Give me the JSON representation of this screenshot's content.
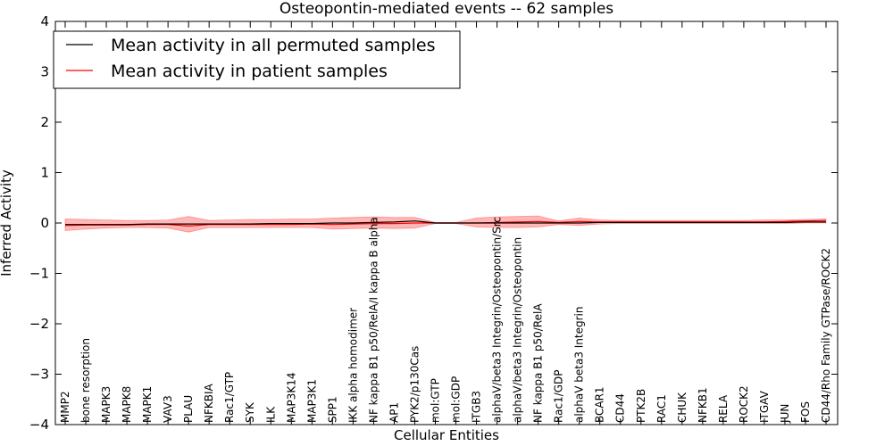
{
  "chart_data": {
    "type": "line",
    "title": "Osteopontin-mediated events -- 62 samples",
    "xlabel": "Cellular Entities",
    "ylabel": "Inferred Activity",
    "ylim": [
      -4,
      4
    ],
    "yticks": [
      -4,
      -3,
      -2,
      -1,
      0,
      1,
      2,
      3,
      4
    ],
    "ytick_labels": [
      "−4",
      "−3",
      "−2",
      "−1",
      "0",
      "1",
      "2",
      "3",
      "4"
    ],
    "legend_position": "upper-left",
    "categories": [
      "MMP2",
      "bone resorption",
      "MAPK3",
      "MAPK8",
      "MAPK1",
      "VAV3",
      "PLAU",
      "NFKBIA",
      "Rac1/GTP",
      "SYK",
      "ILK",
      "MAP3K14",
      "MAP3K1",
      "SPP1",
      "IKK alpha homodimer",
      "NF kappa B1 p50/RelA/I kappa B alpha",
      "AP1",
      "PYK2/p130Cas",
      "mol:GTP",
      "mol:GDP",
      "ITGB3",
      "alphaV/beta3 Integrin/Osteopontin/Src",
      "alphaV/beta3 Integrin/Osteopontin",
      "NF kappa B1 p50/RelA",
      "Rac1/GDP",
      "alphaV beta3 Integrin",
      "BCAR1",
      "CD44",
      "PTK2B",
      "RAC1",
      "CHUK",
      "NFKB1",
      "RELA",
      "ROCK2",
      "ITGAV",
      "JUN",
      "FOS",
      "CD44/Rho Family GTPase/ROCK2"
    ],
    "series": [
      {
        "name": "Mean activity in all permuted samples",
        "color": "#000000",
        "values": [
          -0.03,
          -0.03,
          -0.03,
          -0.03,
          -0.02,
          -0.02,
          -0.02,
          -0.02,
          -0.02,
          -0.02,
          -0.01,
          -0.01,
          -0.01,
          0.0,
          0.0,
          0.01,
          0.02,
          0.04,
          0.0,
          0.0,
          0.0,
          0.0,
          0.0,
          0.0,
          0.0,
          0.0,
          0.01,
          0.01,
          0.01,
          0.01,
          0.01,
          0.01,
          0.01,
          0.01,
          0.01,
          0.01,
          0.02,
          0.02
        ]
      },
      {
        "name": "Mean activity in patient samples",
        "color": "#ff0000",
        "values": [
          -0.05,
          -0.04,
          -0.04,
          -0.04,
          -0.03,
          -0.03,
          -0.06,
          -0.03,
          -0.03,
          -0.03,
          -0.03,
          -0.03,
          -0.02,
          -0.03,
          -0.02,
          -0.01,
          -0.01,
          0.0,
          0.0,
          0.0,
          0.0,
          0.01,
          0.02,
          0.03,
          0.01,
          0.03,
          0.02,
          0.02,
          0.02,
          0.02,
          0.02,
          0.02,
          0.02,
          0.02,
          0.02,
          0.03,
          0.04,
          0.05
        ]
      }
    ],
    "band": {
      "color": "#ff0000",
      "upper": [
        0.08,
        0.07,
        0.06,
        0.05,
        0.05,
        0.06,
        0.13,
        0.05,
        0.06,
        0.07,
        0.07,
        0.08,
        0.08,
        0.1,
        0.11,
        0.12,
        0.11,
        0.11,
        0.01,
        0.01,
        0.1,
        0.12,
        0.13,
        0.14,
        0.04,
        0.1,
        0.06,
        0.05,
        0.05,
        0.05,
        0.05,
        0.05,
        0.05,
        0.05,
        0.06,
        0.06,
        0.07,
        0.08
      ],
      "lower": [
        -0.15,
        -0.12,
        -0.1,
        -0.09,
        -0.09,
        -0.1,
        -0.18,
        -0.09,
        -0.09,
        -0.09,
        -0.09,
        -0.09,
        -0.09,
        -0.12,
        -0.11,
        -0.1,
        -0.11,
        -0.1,
        -0.01,
        -0.01,
        -0.08,
        -0.09,
        -0.09,
        -0.08,
        -0.03,
        -0.05,
        -0.02,
        -0.01,
        -0.01,
        -0.01,
        -0.01,
        -0.01,
        -0.01,
        -0.01,
        -0.01,
        -0.01,
        0.0,
        0.0
      ]
    }
  }
}
